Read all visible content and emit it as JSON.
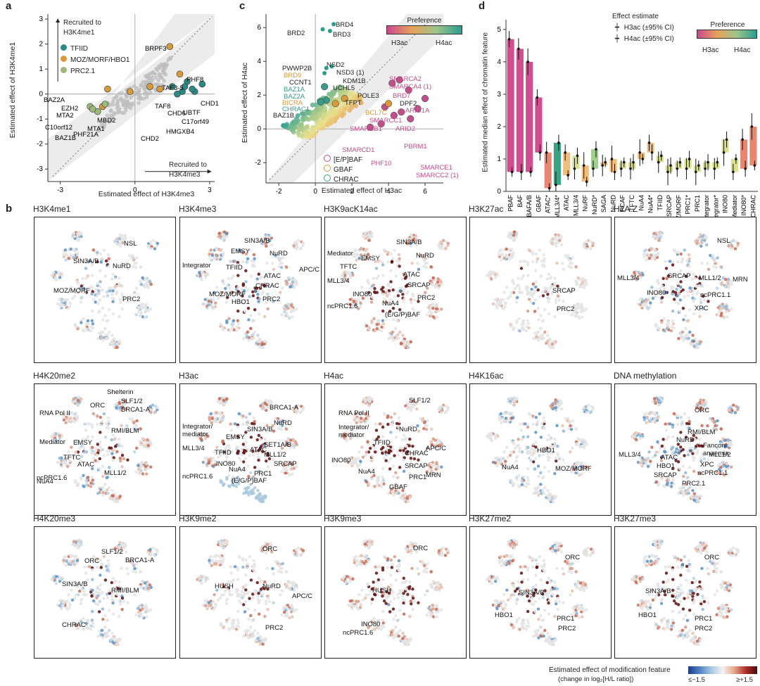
{
  "panel_labels": {
    "a": "a",
    "b": "b",
    "c": "c",
    "d": "d"
  },
  "panel_a": {
    "xlabel": "Estimated effect of H3K4me3",
    "ylabel": "Estimated effect of H3K4me1",
    "corner_top": "Recruited to\nH3K4me1",
    "corner_bottom": "Recruited to\nH3K4me3",
    "legend": [
      {
        "label": "TFIID",
        "color": "#2b8a86"
      },
      {
        "label": "MOZ/MORF/HBO1",
        "color": "#d69a3c"
      },
      {
        "label": "PRC2.1",
        "color": "#9cb87a"
      }
    ],
    "xticks": [
      "-3",
      "0",
      "3"
    ],
    "yticks": [
      "3",
      "2",
      "1",
      "0",
      "-1",
      "-2",
      "-3"
    ],
    "annotations": [
      "BRPF3",
      "CHD6",
      "PHF8",
      "TAF3-5",
      "CHD1",
      "TAF8",
      "UBTF",
      "C17orf49",
      "HMGXB4",
      "CHD2",
      "BAZ2A",
      "EZH2",
      "MTA2",
      "C10orf12",
      "BAZ1B",
      "MBD2",
      "MTA1",
      "PHF21A"
    ]
  },
  "panel_c": {
    "xlabel": "Estimated effect of H3ac",
    "ylabel": "Estimated effect of H4ac",
    "preference_title": "Preference",
    "preference_left": "H3ac",
    "preference_right": "H4ac",
    "legend": [
      {
        "label": "[E/P]BAF",
        "color": "#c0508a"
      },
      {
        "label": "GBAF",
        "color": "#d69a3c"
      },
      {
        "label": "CHRAC",
        "color": "#3a9a8a"
      }
    ],
    "xticks": [
      "-2",
      "0",
      "2",
      "4",
      "6"
    ],
    "yticks": [
      "6",
      "4",
      "2",
      "0",
      "-2"
    ],
    "annotations": [
      "BRD4",
      "BRD2",
      "BRD3",
      "NSD2",
      "PWWP2B",
      "NSD3 (1)",
      "BRD9",
      "KDM1B",
      "CCNT1",
      "UCHL5",
      "BAZ1A",
      "POLE3",
      "BAZ2A",
      "BICRA",
      "TFPT",
      "CHRAC1",
      "BAZ1B",
      "SMARCA2",
      "SMARCA4 (1)",
      "BRD7",
      "DPF2",
      "ARID1A",
      "BCL7C",
      "SMARCC1",
      "ARID2",
      "SMARCB1",
      "SMARCD1",
      "PHF10",
      "PBRM1",
      "SMARCE1",
      "SMARCC2 (1)"
    ]
  },
  "panel_d": {
    "ylabel": "Estimated median effect of chromatin feature",
    "legend_title": "Effect estimate",
    "legend_items": [
      "H3ac (±95% CI)",
      "H4ac (±95% CI)"
    ],
    "preference_title": "Preference",
    "preference_left": "H3ac",
    "preference_right": "H4ac",
    "yticks": [
      "5",
      "4",
      "3",
      "2",
      "1",
      "0"
    ]
  },
  "panel_b": {
    "panels": [
      {
        "title": "H3K4me1",
        "labels": [
          "NSL",
          "SIN3A/B",
          "NuRD",
          "MOZ/MORF",
          "PRC2"
        ]
      },
      {
        "title": "H3K4me3",
        "labels": [
          "SIN3A/B",
          "EMSY",
          "NuRD",
          "Integrator",
          "TFIID",
          "ATAC",
          "APC/C",
          "CHRAC",
          "MOZ/MORF",
          "HBO1",
          "PRC2"
        ]
      },
      {
        "title": "H3K9acK14ac",
        "labels": [
          "Mediator",
          "SIN3A/B",
          "EMSY",
          "NuRD",
          "TFTC",
          "ATAC",
          "MLL3/4",
          "SRCAP",
          "INO80",
          "PRC2",
          "NuA4",
          "ncPRC1.6",
          "(E/G/P)BAF"
        ]
      },
      {
        "title": "H3K27ac",
        "labels": [
          "SRCAP",
          "PRC2"
        ]
      },
      {
        "title": "H2A.Z",
        "labels": [
          "NSL",
          "MLL3/4",
          "SRCAP",
          "MLL1/2",
          "MRN",
          "INO80",
          "ncPRC1.1",
          "XPC"
        ]
      },
      {
        "title": "H4K20me2",
        "labels": [
          "Shelterin",
          "SLF1/2",
          "RNA Pol II",
          "ORC",
          "BRCA1-A",
          "RMI/BLM",
          "Mediator",
          "EMSY",
          "TFTC",
          "ATAC",
          "NuA4",
          "MLL1/2",
          "ncPRC1.6"
        ]
      },
      {
        "title": "H3ac",
        "labels": [
          "BRCA1-A",
          "NuRD",
          "Integrator/\nmediator",
          "SIN3A/B",
          "EMSY",
          "SET1A/B",
          "MLL3/4",
          "TFIID",
          "ATAC",
          "MLL1/2",
          "INO80",
          "SRCAP",
          "ncPRC1.6",
          "NuA4",
          "PRC1",
          "(E/G/P)BAF"
        ]
      },
      {
        "title": "H4ac",
        "labels": [
          "SLF1/2",
          "RNA Pol II",
          "NuRD",
          "Integrator/\nmediator",
          "TFIID",
          "APC/C",
          "CHRAC",
          "INO80",
          "NuA4",
          "SRCAP",
          "MRN",
          "PRC1",
          "GBAF"
        ]
      },
      {
        "title": "H4K16ac",
        "labels": [
          "HBO1",
          "NuA4",
          "MOZ/MORF"
        ]
      },
      {
        "title": "DNA methylation",
        "labels": [
          "ORC",
          "RMI/BLM",
          "NuRD",
          "Fanconi\nanaemia",
          "MLL3/4",
          "ATAC",
          "HBO1",
          "MLL1/2",
          "XPC",
          "ncPRC1.1",
          "SRCAP",
          "PRC2.1"
        ]
      },
      {
        "title": "H4K20me3",
        "labels": [
          "SLF1/2",
          "ORC",
          "BRCA1-A",
          "SIN3A/B",
          "RMI/BLM",
          "CHRAC"
        ]
      },
      {
        "title": "H3K9me2",
        "labels": [
          "ORC",
          "HUSH",
          "NuRD",
          "APC/C",
          "PRC2"
        ]
      },
      {
        "title": "H3K9me3",
        "labels": [
          "ORC",
          "HUSH",
          "INO80",
          "ncPRC1.6"
        ]
      },
      {
        "title": "H3K27me2",
        "labels": [
          "ORC",
          "SIN3A/B",
          "HBO1",
          "PRC1",
          "PRC2"
        ]
      },
      {
        "title": "H3K27me3",
        "labels": [
          "ORC",
          "SIN3A/B",
          "HBO1",
          "PRC1",
          "PRC2"
        ]
      }
    ],
    "colorbar_title": "Estimated effect of modification feature",
    "colorbar_subtitle": "(change in log₂[H/L ratio])",
    "colorbar_min": "≤−1.5",
    "colorbar_max": "≥+1.5"
  },
  "chart_data": [
    {
      "type": "scatter",
      "panel": "a",
      "xlabel": "Estimated effect of H3K4me3",
      "ylabel": "Estimated effect of H3K4me1",
      "xlim": [
        -3.5,
        3.2
      ],
      "ylim": [
        -3.5,
        3.2
      ],
      "series": [
        {
          "name": "TFIID",
          "points": [
            [
              1.5,
              0.3
            ],
            [
              2.1,
              0.5
            ],
            [
              2.4,
              0.1
            ],
            [
              2.7,
              0.4
            ],
            [
              1.9,
              0.1
            ],
            [
              2.3,
              0.2
            ],
            [
              1.7,
              0.0
            ],
            [
              2.0,
              0.3
            ]
          ]
        },
        {
          "name": "MOZ/MORF/HBO1",
          "points": [
            [
              1.4,
              1.9
            ],
            [
              1.0,
              0.2
            ],
            [
              1.8,
              0.8
            ],
            [
              -1.1,
              0.2
            ],
            [
              -1.3,
              -0.5
            ],
            [
              0.6,
              0.3
            ],
            [
              -0.2,
              0.1
            ]
          ]
        },
        {
          "name": "PRC2.1",
          "points": [
            [
              -1.8,
              -0.5
            ],
            [
              -1.5,
              -0.7
            ],
            [
              -1.2,
              -0.4
            ],
            [
              -1.7,
              -0.6
            ]
          ]
        }
      ]
    },
    {
      "type": "scatter",
      "panel": "c",
      "xlabel": "Estimated effect of H3ac",
      "ylabel": "Estimated effect of H4ac",
      "xlim": [
        -2.7,
        7
      ],
      "ylim": [
        -3.2,
        6.8
      ],
      "series": [
        {
          "name": "[E/P]BAF",
          "points": [
            [
              4.2,
              2.7
            ],
            [
              4.6,
              2.9
            ],
            [
              5.1,
              2.3
            ],
            [
              6.0,
              1.8
            ],
            [
              3.8,
              1.3
            ],
            [
              4.7,
              1.0
            ],
            [
              4.3,
              0.8
            ],
            [
              5.6,
              1.2
            ],
            [
              3.6,
              0.3
            ],
            [
              5.2,
              0.6
            ],
            [
              3.0,
              0.1
            ]
          ]
        },
        {
          "name": "GBAF",
          "points": [
            [
              1.1,
              1.5
            ],
            [
              1.6,
              1.8
            ],
            [
              4.0,
              1.5
            ]
          ]
        },
        {
          "name": "CHRAC",
          "points": [
            [
              0.5,
              2.5
            ],
            [
              0.6,
              1.7
            ],
            [
              0.3,
              1.6
            ]
          ]
        }
      ]
    },
    {
      "type": "bar",
      "panel": "d",
      "ylabel": "Estimated median effect of chromatin feature",
      "ylim": [
        0,
        5.3
      ],
      "categories": [
        "PBAF",
        "BAF",
        "EBAFA/B",
        "GBAF",
        "ATAC*",
        "MLL3/4*",
        "ATAC",
        "MLL3/4",
        "NuRF",
        "NuRD*",
        "SAGA",
        "NuRD",
        "PCAF",
        "TFTC",
        "NuA4",
        "NuA4*",
        "TFIID",
        "SRCAP",
        "MOZ/MORF",
        "PRC1*",
        "PRC1",
        "Integrator",
        "Integrator*",
        "INO80",
        "Mediator",
        "INO80*",
        "CHRAC"
      ],
      "series": [
        {
          "name": "H3ac (±95% CI)",
          "values": [
            4.7,
            4.4,
            4.0,
            2.9,
            1.2,
            0.2,
            1.2,
            0.7,
            0.8,
            0.7,
            0.8,
            1.0,
            0.7,
            0.7,
            1.2,
            1.5,
            0.9,
            0.6,
            0.7,
            0.7,
            0.6,
            0.7,
            0.7,
            1.2,
            0.6,
            1.6,
            2.0
          ]
        },
        {
          "name": "H4ac (±95% CI)",
          "values": [
            0.6,
            0.6,
            0.6,
            1.2,
            0.1,
            1.5,
            0.5,
            1.1,
            0.3,
            1.3,
            0.9,
            0.6,
            0.9,
            0.9,
            1.0,
            1.2,
            1.1,
            0.8,
            0.9,
            1.0,
            0.8,
            0.9,
            0.9,
            1.6,
            1.0,
            0.7,
            0.8
          ]
        }
      ]
    }
  ]
}
